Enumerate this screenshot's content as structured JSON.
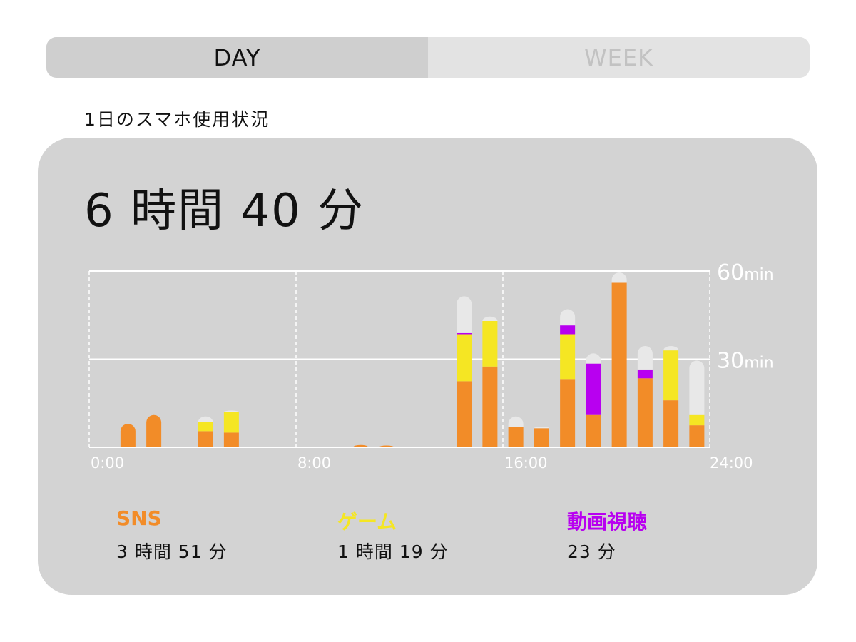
{
  "tabs": [
    {
      "label": "DAY",
      "active": true
    },
    {
      "label": "WEEK",
      "active": false
    }
  ],
  "subtitle": "1日のスマホ使用状況",
  "total": "6 時間 40 分",
  "colors": {
    "sns": "#f28c28",
    "game": "#f5e623",
    "video": "#b800f0",
    "other": "#e8e8e8"
  },
  "legend": [
    {
      "name": "SNS",
      "value": "3 時間 51 分",
      "color": "#f28c28"
    },
    {
      "name": "ゲーム",
      "value": "1 時間 19 分",
      "color": "#f5e623"
    },
    {
      "name": "動画視聴",
      "value": "23 分",
      "color": "#b800f0"
    }
  ],
  "chart_data": {
    "type": "bar",
    "stacked": true,
    "x_tick_labels": [
      "0:00",
      "8:00",
      "16:00",
      "24:00"
    ],
    "y_tick_labels": [
      "30min",
      "60min"
    ],
    "ylim": [
      0,
      60
    ],
    "categories": [
      "0",
      "1",
      "2",
      "3",
      "4",
      "5",
      "6",
      "7",
      "8",
      "9",
      "10",
      "11",
      "12",
      "13",
      "14",
      "15",
      "16",
      "17",
      "18",
      "19",
      "20",
      "21",
      "22",
      "23"
    ],
    "series": [
      {
        "name": "SNS",
        "color": "#f28c28",
        "values": [
          0,
          8,
          11,
          0,
          5.5,
          5,
          0,
          0,
          0,
          0,
          0.8,
          0.6,
          0,
          0,
          22.5,
          27.5,
          7,
          6.5,
          23,
          11,
          56,
          23.5,
          16,
          7.5
        ]
      },
      {
        "name": "ゲーム",
        "color": "#f5e623",
        "values": [
          0,
          0,
          0,
          0,
          3,
          7,
          0,
          0,
          0,
          0,
          0,
          0,
          0,
          0,
          16,
          15.5,
          0,
          0,
          15.5,
          0,
          0,
          0,
          17,
          3.5
        ]
      },
      {
        "name": "動画視聴",
        "color": "#b800f0",
        "values": [
          0,
          0,
          0,
          0,
          0,
          0,
          0,
          0,
          0,
          0,
          0,
          0,
          0,
          0,
          0.4,
          0,
          0,
          0,
          3,
          17.5,
          0,
          3,
          0,
          0
        ]
      },
      {
        "color": "#e8e8e8",
        "values": [
          0,
          0,
          0,
          0.2,
          2,
          0.5,
          0,
          0,
          0,
          0,
          0,
          0,
          0,
          0,
          12.5,
          1.5,
          3.5,
          0.5,
          5.5,
          3.5,
          3.5,
          8,
          1.5,
          18.5
        ]
      }
    ]
  }
}
